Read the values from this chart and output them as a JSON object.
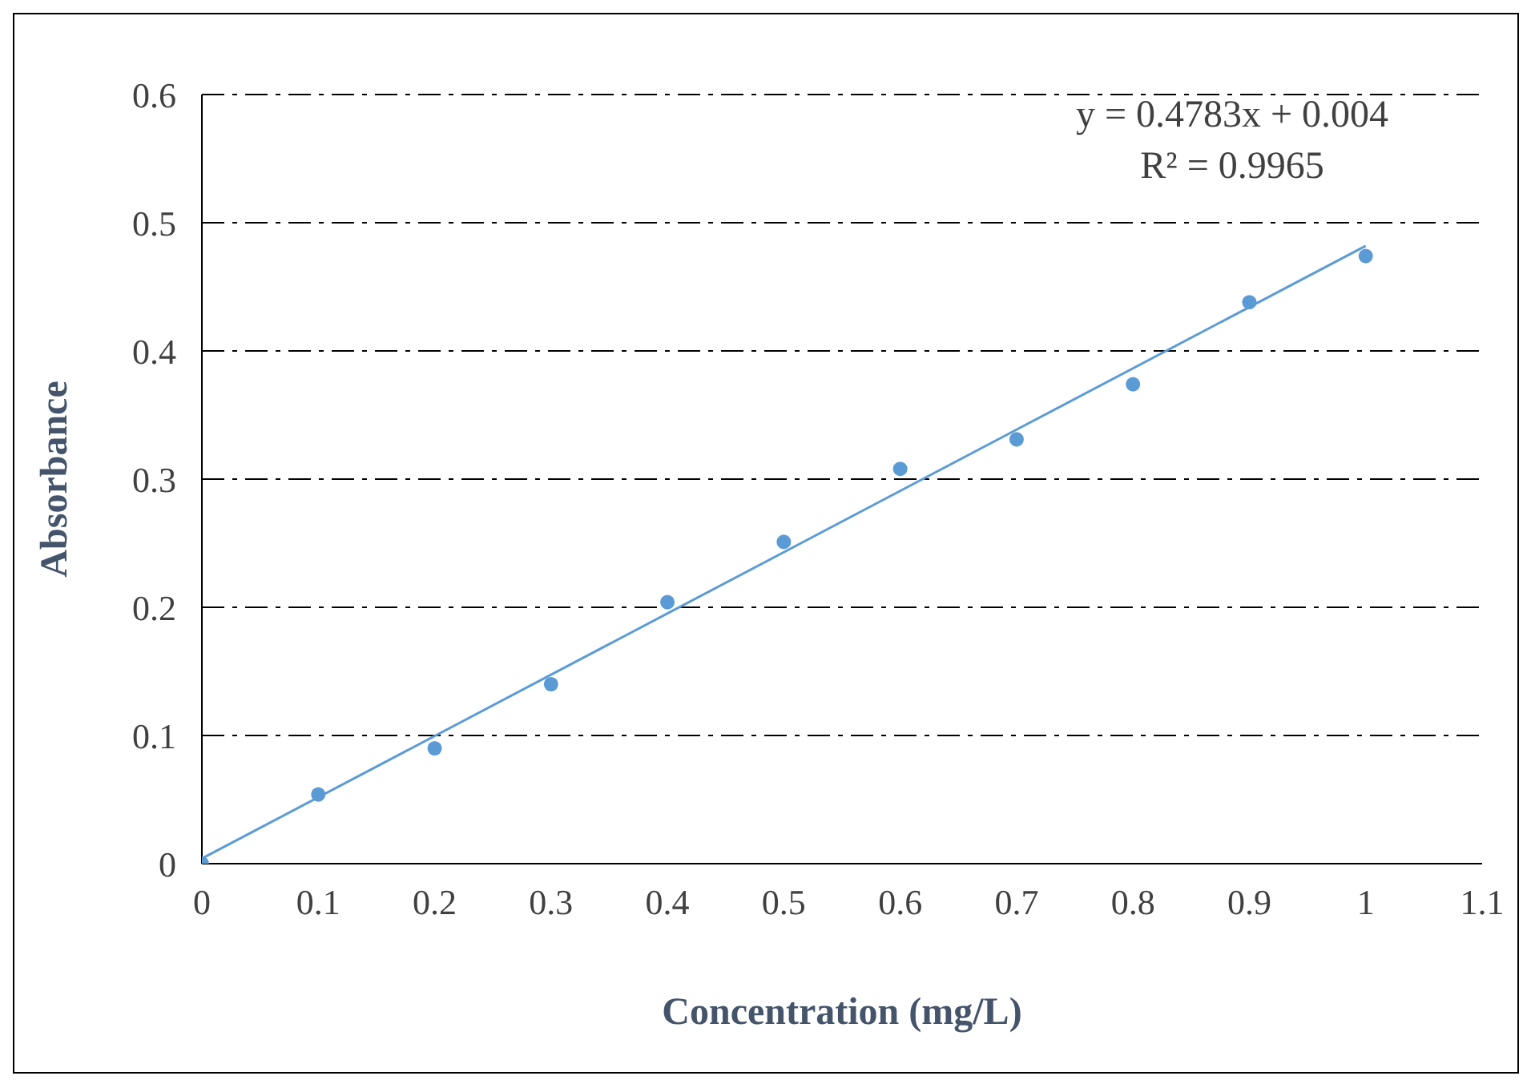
{
  "chart_data": {
    "type": "scatter",
    "xlabel": "Concentration (mg/L)",
    "ylabel": "Absorbance",
    "annotations": [
      "y = 0.4783x + 0.004",
      "R² = 0.9965"
    ],
    "x": [
      0,
      0.1,
      0.2,
      0.3,
      0.4,
      0.5,
      0.6,
      0.7,
      0.8,
      0.9,
      1
    ],
    "series": [
      {
        "color": "#5b9bd5",
        "marker": "circle",
        "values": [
          0,
          0.054,
          0.09,
          0.14,
          0.204,
          0.251,
          0.308,
          0.331,
          0.374,
          0.438,
          0.474
        ]
      },
      {
        "type": "line",
        "color": "#5b9bd5",
        "marker": "none",
        "line_style": "solid",
        "x": [
          0,
          1
        ],
        "values": [
          0.004,
          0.482
        ]
      }
    ],
    "xlim": [
      0,
      1.1
    ],
    "xticks": [
      0,
      0.1,
      0.2,
      0.3,
      0.4,
      0.5,
      0.6,
      0.7,
      0.8,
      0.9,
      1,
      1.1
    ],
    "ylim": [
      0,
      0.6
    ],
    "yticks": [
      0,
      0.1,
      0.2,
      0.3,
      0.4,
      0.5,
      0.6
    ],
    "grid": "y",
    "legend": false
  }
}
